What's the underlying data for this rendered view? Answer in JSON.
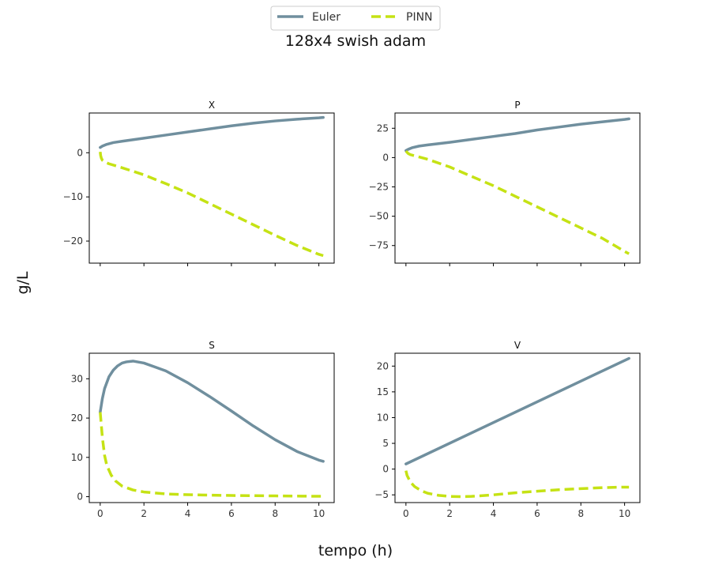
{
  "chart_data": {
    "type": "line",
    "title": "128x4 swish adam",
    "xlabel": "tempo (h)",
    "ylabel": "g/L",
    "legend": {
      "placement": "top-center",
      "entries": [
        {
          "name": "Euler",
          "color": "#708f9e",
          "style": "solid"
        },
        {
          "name": "PINN",
          "color": "#c5e214",
          "style": "dashed"
        }
      ]
    },
    "x_ticks": [
      0,
      2,
      4,
      6,
      8,
      10
    ],
    "xlim": [
      -0.5,
      10.7
    ],
    "panels": [
      {
        "id": "X",
        "title": "X",
        "ylim": [
          -25,
          9
        ],
        "y_ticks": [
          0,
          -10,
          -20
        ],
        "y_tick_labels": [
          "0",
          "−10",
          "−20"
        ],
        "show_x_tick_labels": false,
        "series": [
          {
            "name": "Euler",
            "x": [
              0,
              0.1,
              0.3,
              0.6,
              1,
              2,
              3,
              4,
              5,
              6,
              7,
              8,
              9,
              10,
              10.2
            ],
            "y": [
              1.2,
              1.5,
              1.9,
              2.3,
              2.6,
              3.3,
              4.0,
              4.7,
              5.4,
              6.1,
              6.7,
              7.2,
              7.6,
              7.9,
              8.0
            ]
          },
          {
            "name": "PINN",
            "x": [
              0,
              0.02,
              0.05,
              0.1,
              0.2,
              0.4,
              1,
              2,
              3,
              4,
              5,
              6,
              7,
              8,
              9,
              10,
              10.2
            ],
            "y": [
              0.2,
              -0.6,
              -1.2,
              -1.7,
              -2.1,
              -2.5,
              -3.4,
              -5.0,
              -7.0,
              -9.1,
              -11.5,
              -13.9,
              -16.3,
              -18.7,
              -21.0,
              -23.0,
              -23.3
            ]
          }
        ]
      },
      {
        "id": "P",
        "title": "P",
        "ylim": [
          -90,
          38
        ],
        "y_ticks": [
          25,
          0,
          -25,
          -50,
          -75
        ],
        "y_tick_labels": [
          "25",
          "0",
          "−25",
          "−50",
          "−75"
        ],
        "show_x_tick_labels": false,
        "series": [
          {
            "name": "Euler",
            "x": [
              0,
              0.1,
              0.3,
              0.6,
              1,
              2,
              3,
              4,
              5,
              6,
              7,
              8,
              9,
              10,
              10.2
            ],
            "y": [
              6,
              7,
              8.5,
              9.8,
              10.8,
              13,
              15.5,
              18,
              20.5,
              23.5,
              26,
              28.5,
              30.5,
              32.5,
              33
            ]
          },
          {
            "name": "PINN",
            "x": [
              0,
              0.05,
              0.1,
              0.2,
              0.5,
              1,
              2,
              3,
              4,
              5,
              6,
              7,
              8,
              9,
              10,
              10.2
            ],
            "y": [
              5.5,
              4.5,
              3.5,
              2.5,
              1,
              -1.5,
              -8,
              -16,
              -24,
              -33,
              -42,
              -51,
              -60,
              -69,
              -80,
              -82
            ]
          }
        ]
      },
      {
        "id": "S",
        "title": "S",
        "ylim": [
          -1.5,
          36.5
        ],
        "y_ticks": [
          0,
          10,
          20,
          30
        ],
        "y_tick_labels": [
          "0",
          "10",
          "20",
          "30"
        ],
        "show_x_tick_labels": true,
        "series": [
          {
            "name": "Euler",
            "x": [
              0,
              0.1,
              0.2,
              0.4,
              0.6,
              0.8,
              1.0,
              1.2,
              1.5,
              2,
              2.5,
              3,
              4,
              5,
              6,
              7,
              8,
              9,
              10,
              10.2
            ],
            "y": [
              21.5,
              25,
              27.5,
              30.5,
              32.2,
              33.3,
              34,
              34.3,
              34.5,
              34,
              33,
              32,
              29,
              25.5,
              21.8,
              18,
              14.5,
              11.5,
              9.3,
              9.0
            ]
          },
          {
            "name": "PINN",
            "x": [
              0,
              0.1,
              0.2,
              0.3,
              0.5,
              0.7,
              1,
              1.5,
              2,
              3,
              4,
              5,
              6,
              8,
              10,
              10.2
            ],
            "y": [
              21.5,
              15,
              10.5,
              8,
              5.5,
              4,
              2.7,
              1.7,
              1.2,
              0.7,
              0.5,
              0.4,
              0.3,
              0.2,
              0.1,
              0.1
            ]
          }
        ]
      },
      {
        "id": "V",
        "title": "V",
        "ylim": [
          -6.5,
          22.5
        ],
        "y_ticks": [
          20,
          15,
          10,
          5,
          0,
          -5
        ],
        "y_tick_labels": [
          "20",
          "15",
          "10",
          "5",
          "0",
          "−5"
        ],
        "show_x_tick_labels": true,
        "series": [
          {
            "name": "Euler",
            "x": [
              0,
              10.2
            ],
            "y": [
              1.0,
              21.5
            ]
          },
          {
            "name": "PINN",
            "x": [
              0,
              0.05,
              0.2,
              0.4,
              0.7,
              1,
              1.5,
              2,
              2.5,
              3,
              4,
              5,
              6,
              7,
              8,
              9,
              10,
              10.2
            ],
            "y": [
              -0.3,
              -1.2,
              -2.5,
              -3.4,
              -4.2,
              -4.7,
              -5.1,
              -5.3,
              -5.35,
              -5.3,
              -5.0,
              -4.6,
              -4.3,
              -4.0,
              -3.8,
              -3.6,
              -3.5,
              -3.5
            ]
          }
        ]
      }
    ]
  }
}
